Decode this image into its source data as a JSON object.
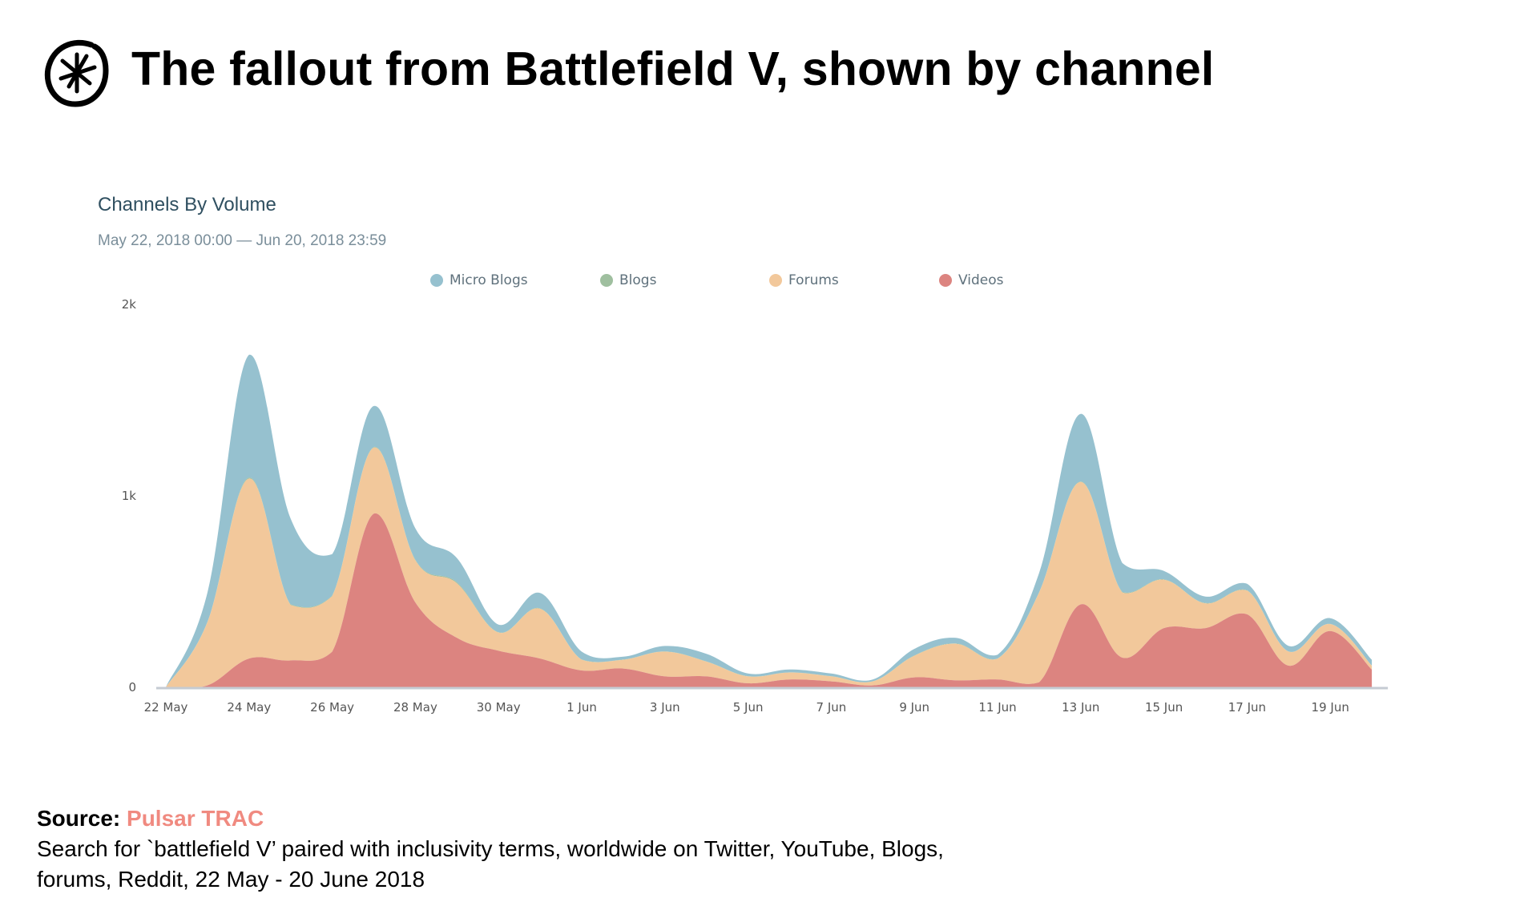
{
  "header": {
    "title": "The fallout from Battlefield V, shown by channel",
    "logo_icon": "asterisk-circle-logo"
  },
  "panel": {
    "title": "Channels By Volume",
    "date_range": "May 22, 2018 00:00 — Jun 20, 2018 23:59"
  },
  "source": {
    "label": "Source:",
    "name": "Pulsar TRAC",
    "line1": "Search for `battlefield V’ paired with inclusivity terms, worldwide on Twitter, YouTube, Blogs,",
    "line2": "forums, Reddit, 22 May - 20 June 2018",
    "accent_color": "#f08a80"
  },
  "chart_data": {
    "type": "area",
    "stacked": true,
    "title": "Channels By Volume",
    "subtitle": "May 22, 2018 00:00 — Jun 20, 2018 23:59",
    "xlabel": "",
    "ylabel": "",
    "ylim": [
      0,
      2000
    ],
    "yticks": [
      {
        "value": 0,
        "label": "0"
      },
      {
        "value": 1000,
        "label": "1k"
      },
      {
        "value": 2000,
        "label": "2k"
      }
    ],
    "grid": false,
    "legend_position": "top-center",
    "x": [
      "22 May",
      "23 May",
      "24 May",
      "25 May",
      "26 May",
      "27 May",
      "28 May",
      "29 May",
      "30 May",
      "31 May",
      "1 Jun",
      "2 Jun",
      "3 Jun",
      "4 Jun",
      "5 Jun",
      "6 Jun",
      "7 Jun",
      "8 Jun",
      "9 Jun",
      "10 Jun",
      "11 Jun",
      "12 Jun",
      "13 Jun",
      "14 Jun",
      "15 Jun",
      "16 Jun",
      "17 Jun",
      "18 Jun",
      "19 Jun",
      "20 Jun"
    ],
    "xtick_labels": [
      "22 May",
      "24 May",
      "26 May",
      "28 May",
      "30 May",
      "1 Jun",
      "3 Jun",
      "5 Jun",
      "7 Jun",
      "9 Jun",
      "11 Jun",
      "13 Jun",
      "15 Jun",
      "17 Jun",
      "19 Jun"
    ],
    "series": [
      {
        "name": "Videos",
        "color": "#dc8480",
        "values": [
          0,
          10,
          150,
          140,
          186,
          907,
          443,
          258,
          191,
          150,
          88,
          98,
          57,
          57,
          21,
          41,
          31,
          10,
          52,
          36,
          41,
          26,
          433,
          155,
          309,
          309,
          381,
          113,
          294,
          93
        ]
      },
      {
        "name": "Forums",
        "color": "#f2c89b",
        "values": [
          0,
          330,
          940,
          290,
          290,
          345,
          220,
          285,
          95,
          260,
          56,
          46,
          129,
          77,
          36,
          36,
          26,
          21,
          113,
          191,
          108,
          469,
          639,
          340,
          253,
          129,
          124,
          73,
          36,
          20
        ]
      },
      {
        "name": "Blogs",
        "color": "#9fbf9f",
        "values": [
          0,
          2,
          5,
          3,
          3,
          3,
          3,
          5,
          2,
          2,
          1,
          1,
          1,
          1,
          1,
          1,
          1,
          1,
          2,
          2,
          1,
          2,
          3,
          3,
          2,
          2,
          2,
          1,
          1,
          1
        ]
      },
      {
        "name": "Micro Blogs",
        "color": "#96c1cf",
        "values": [
          0,
          153,
          642,
          448,
          217,
          214,
          164,
          127,
          39,
          81,
          41,
          15,
          29,
          40,
          14,
          15,
          14,
          9,
          34,
          29,
          20,
          101,
          353,
          151,
          44,
          34,
          34,
          29,
          30,
          30
        ]
      }
    ]
  }
}
